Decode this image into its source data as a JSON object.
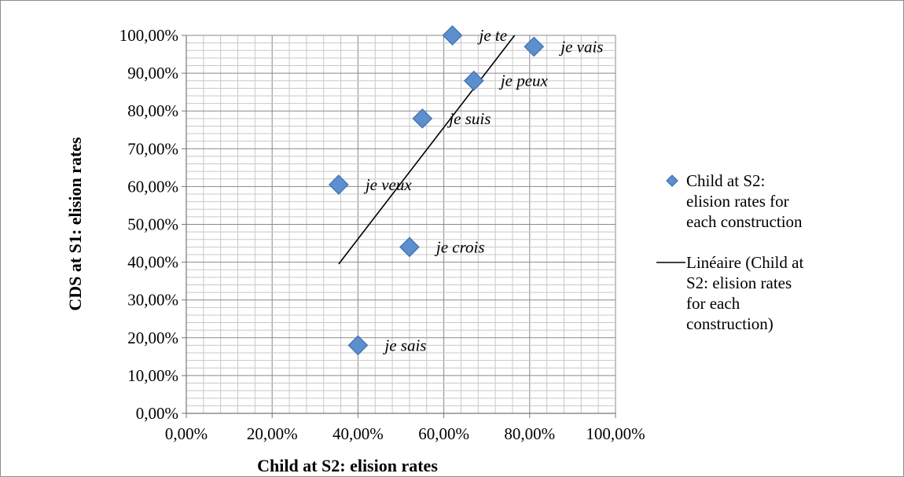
{
  "chart_data": {
    "type": "scatter",
    "xlabel": "Child at S2: elision rates",
    "ylabel": "CDS at S1: elision rates",
    "xlim": [
      0,
      100
    ],
    "ylim": [
      0,
      100
    ],
    "x_major_step": 20,
    "y_major_step": 10,
    "grid": true,
    "legend_position": "right",
    "x_ticks": [
      "0,00%",
      "20,00%",
      "40,00%",
      "60,00%",
      "80,00%",
      "100,00%"
    ],
    "y_ticks": [
      "0,00%",
      "10,00%",
      "20,00%",
      "30,00%",
      "40,00%",
      "50,00%",
      "60,00%",
      "70,00%",
      "80,00%",
      "90,00%",
      "100,00%"
    ],
    "series": [
      {
        "name": "Child at S2: elision rates for each construction",
        "marker": "diamond",
        "color": "#5b8fd0",
        "points": [
          {
            "label": "je te",
            "x": 62,
            "y": 100
          },
          {
            "label": "je vais",
            "x": 81,
            "y": 97
          },
          {
            "label": "je peux",
            "x": 67,
            "y": 88
          },
          {
            "label": "je suis",
            "x": 55,
            "y": 78
          },
          {
            "label": "je veux",
            "x": 35.5,
            "y": 60.5
          },
          {
            "label": "je crois",
            "x": 52,
            "y": 44
          },
          {
            "label": "je sais",
            "x": 40,
            "y": 18
          }
        ]
      }
    ],
    "trendline": {
      "name": "Linéaire (Child at S2: elision rates for each construction)",
      "color": "#000000",
      "x": [
        35.5,
        76.5
      ],
      "y": [
        39.5,
        100
      ]
    },
    "legend": [
      {
        "label": "Child at S2: elision rates for each construction"
      },
      {
        "label": "Linéaire (Child at S2: elision rates for each construction)"
      }
    ]
  }
}
